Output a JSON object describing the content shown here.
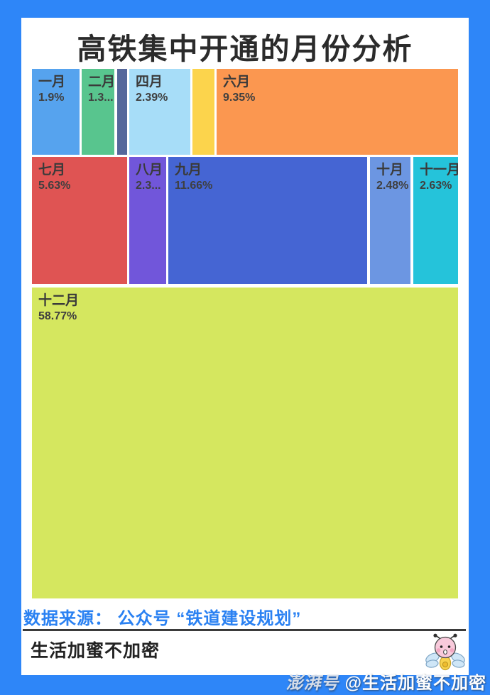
{
  "page": {
    "background_color": "#2e86f8",
    "card_color": "#ffffff"
  },
  "title": "高铁集中开通的月份分析",
  "chart_data": {
    "type": "treemap",
    "title": "高铁集中开通的月份分析",
    "unit": "%",
    "legend": "none",
    "items": [
      {
        "label": "一月",
        "value": 1.9,
        "display": "1.9%",
        "color": "#56a3ee"
      },
      {
        "label": "二月",
        "value": 1.3,
        "display": "1.3...",
        "color": "#58c58e"
      },
      {
        "label": "",
        "value": null,
        "display": "",
        "color": "#55679b"
      },
      {
        "label": "四月",
        "value": 2.39,
        "display": "2.39%",
        "color": "#a7ddf8"
      },
      {
        "label": "",
        "value": null,
        "display": "",
        "color": "#fcd44c"
      },
      {
        "label": "六月",
        "value": 9.35,
        "display": "9.35%",
        "color": "#fb9750"
      },
      {
        "label": "七月",
        "value": 5.63,
        "display": "5.63%",
        "color": "#df5453"
      },
      {
        "label": "八月",
        "value": 2.3,
        "display": "2.3...",
        "color": "#7156da"
      },
      {
        "label": "九月",
        "value": 11.66,
        "display": "11.66%",
        "color": "#4565d3"
      },
      {
        "label": "十月",
        "value": 2.48,
        "display": "2.48%",
        "color": "#6c96e2"
      },
      {
        "label": "十一月",
        "value": 2.63,
        "display": "2.63%",
        "color": "#25c3da"
      },
      {
        "label": "十二月",
        "value": 58.77,
        "display": "58.77%",
        "color": "#d5e75f"
      }
    ]
  },
  "source": {
    "text": "数据来源： 公众号 “铁道建设规划”",
    "color": "#2a81f2"
  },
  "footer": {
    "brand": "生活加蜜不加密",
    "mascot": "bee-mascot-icon"
  },
  "watermark": {
    "logo": "澎湃号",
    "handle": "@生活加蜜不加密"
  }
}
